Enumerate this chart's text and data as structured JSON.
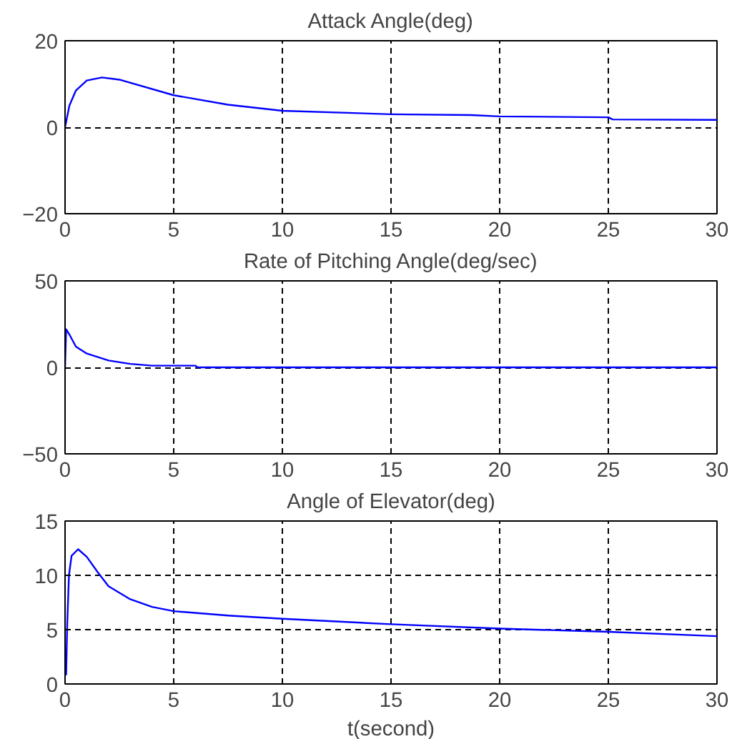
{
  "chart_data": [
    {
      "type": "line",
      "title": "Attack Angle(deg)",
      "xlim": [
        0,
        30
      ],
      "ylim": [
        -20,
        20
      ],
      "xticks": [
        0,
        5,
        10,
        15,
        20,
        25,
        30
      ],
      "yticks": [
        -20,
        0,
        20
      ],
      "grid": true,
      "line_style": "solid",
      "series": [
        {
          "color": "#0000ff",
          "x": [
            0,
            0.2,
            0.5,
            1,
            1.7,
            2.5,
            5,
            7.5,
            10,
            15,
            18.7,
            20,
            25,
            25.2,
            30
          ],
          "values": [
            0,
            5,
            8.5,
            10.8,
            11.5,
            11,
            7.4,
            5.2,
            3.8,
            3,
            2.8,
            2.5,
            2.3,
            1.8,
            1.7
          ]
        }
      ]
    },
    {
      "type": "line",
      "title": "Rate of Pitching Angle(deg/sec)",
      "xlim": [
        0,
        30
      ],
      "ylim": [
        -50,
        50
      ],
      "xticks": [
        0,
        5,
        10,
        15,
        20,
        25,
        30
      ],
      "yticks": [
        -50,
        0,
        50
      ],
      "grid": true,
      "line_style": "solid",
      "series": [
        {
          "color": "#0000ff",
          "x": [
            0,
            0.05,
            0.2,
            0.5,
            1,
            2,
            3,
            4,
            6,
            6.1,
            30
          ],
          "values": [
            0,
            22,
            19,
            12,
            8,
            4,
            2,
            1,
            1,
            0,
            0
          ]
        }
      ]
    },
    {
      "type": "line",
      "title": "Angle of Elevator(deg)",
      "xlabel": "t(second)",
      "xlim": [
        0,
        30
      ],
      "ylim": [
        0,
        15
      ],
      "xticks": [
        0,
        5,
        10,
        15,
        20,
        25,
        30
      ],
      "yticks": [
        0,
        5,
        10,
        15
      ],
      "grid": true,
      "line_style": "solid",
      "series": [
        {
          "color": "#0000ff",
          "x": [
            0.05,
            0.1,
            0.18,
            0.3,
            0.6,
            1,
            1.5,
            2,
            3,
            4,
            5,
            7.5,
            10,
            15,
            20,
            25,
            30
          ],
          "values": [
            0.8,
            5.5,
            10,
            11.8,
            12.4,
            11.7,
            10.3,
            9,
            7.8,
            7.1,
            6.7,
            6.3,
            6,
            5.5,
            5.1,
            4.8,
            4.4
          ]
        }
      ]
    }
  ]
}
